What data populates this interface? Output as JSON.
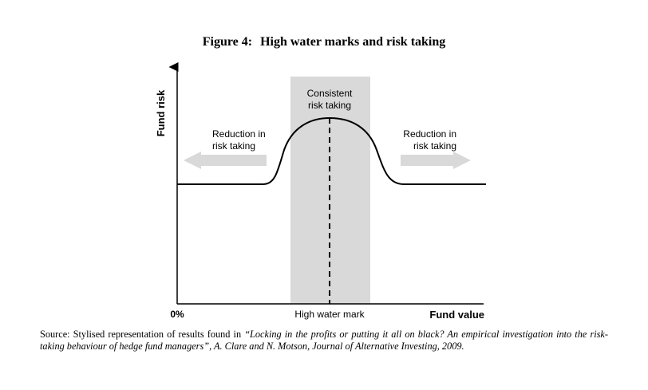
{
  "figure": {
    "number": "Figure 4:",
    "title": "High water marks and risk taking"
  },
  "diagram": {
    "y_axis_label": "Fund risk",
    "x_axis_label": "Fund value",
    "origin_label": "0%",
    "hwm_label": "High water mark",
    "band_label_line1": "Consistent",
    "band_label_line2": "risk taking",
    "left_label_line1": "Reduction in",
    "left_label_line2": "risk taking",
    "right_label_line1": "Reduction in",
    "right_label_line2": "risk taking",
    "colors": {
      "band": "#d9d9d9",
      "arrow": "#d9d9d9",
      "curve": "#000000"
    }
  },
  "source": {
    "prefix": "Source: Stylised representation of results found in ",
    "italic": "“Locking in the profits or putting it all on black? An empirical investigation into the risk-taking behaviour of hedge fund managers”, A. Clare and N. Motson, Journal of Alternative Investing, 2009."
  }
}
